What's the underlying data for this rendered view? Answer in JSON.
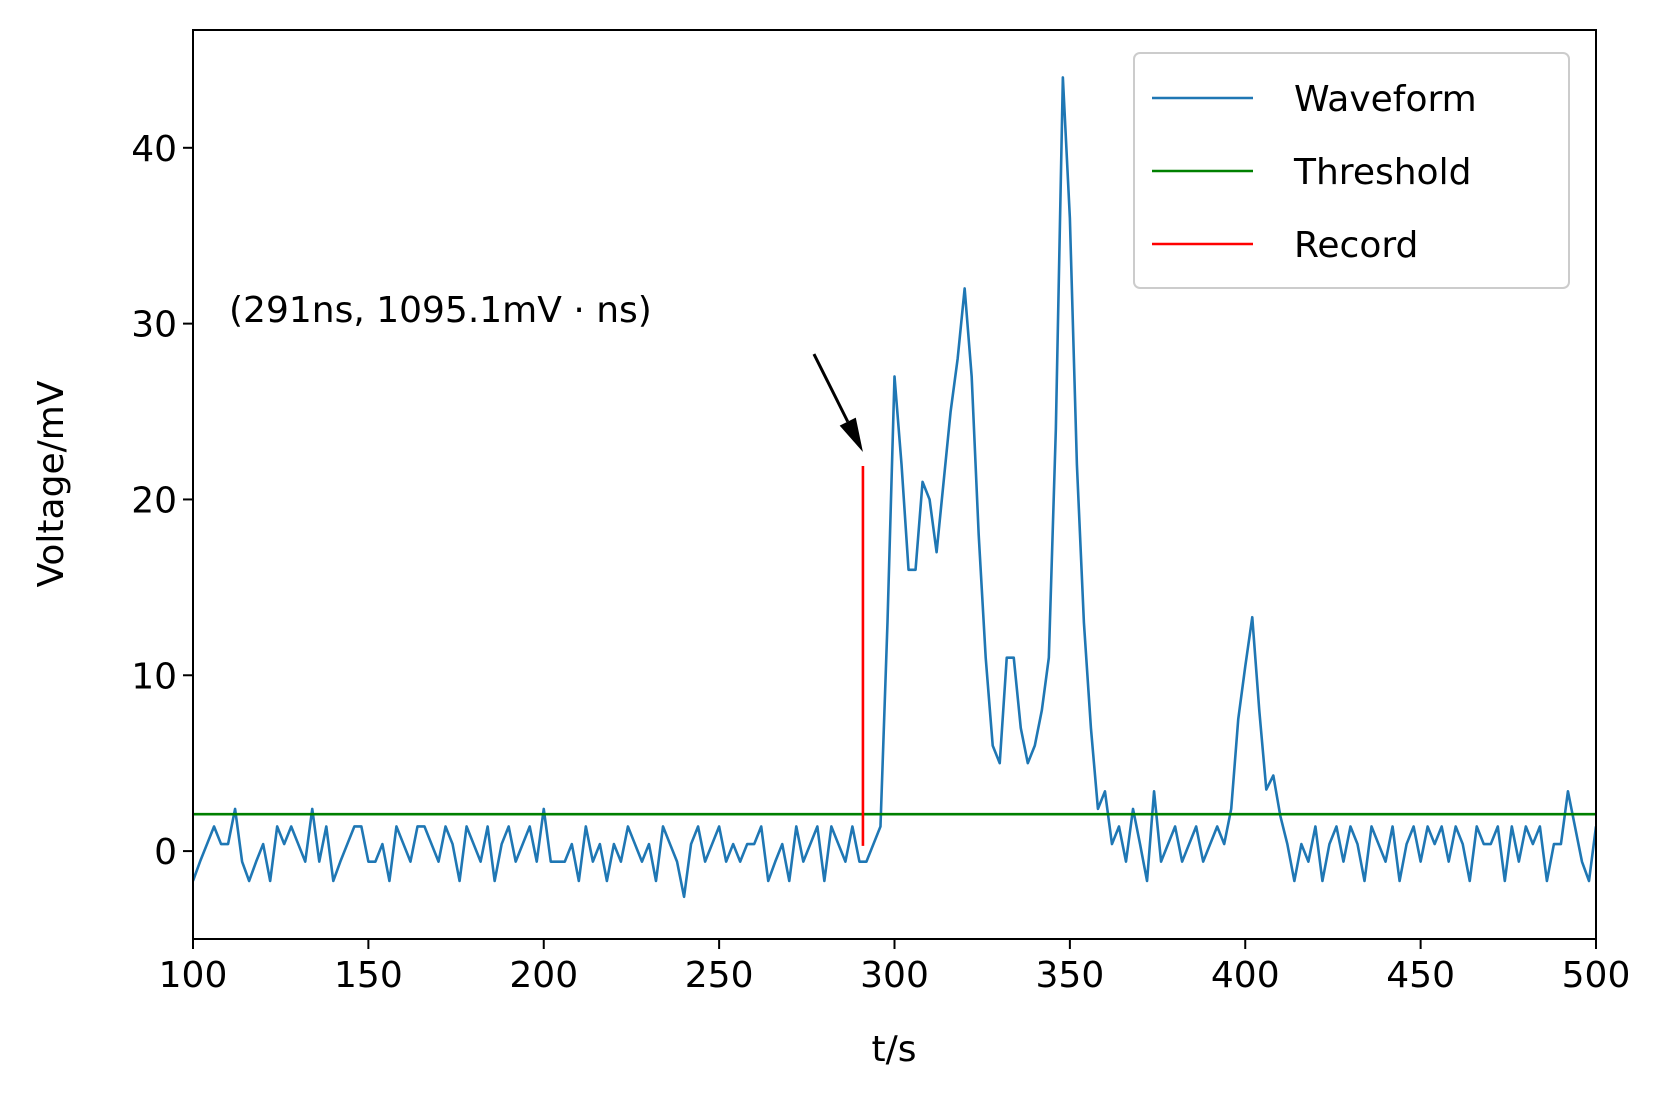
{
  "chart_data": {
    "type": "line",
    "xlabel": "t/s",
    "ylabel": "Voltage/mV",
    "annotation": "(291ns, 1095.1mV · ns)",
    "xlim": [
      100,
      500
    ],
    "xticks": [
      100,
      150,
      200,
      250,
      300,
      350,
      400,
      450,
      500
    ],
    "ylim": [
      -5,
      46.7
    ],
    "yticks": [
      0,
      10,
      20,
      30,
      40
    ],
    "legend": "upper right",
    "series": [
      {
        "name": "Waveform",
        "color": "#1f77b4",
        "x": [
          100,
          102,
          104,
          106,
          108,
          110,
          112,
          114,
          116,
          118,
          120,
          122,
          124,
          126,
          128,
          130,
          132,
          134,
          136,
          138,
          140,
          142,
          144,
          146,
          148,
          150,
          152,
          154,
          156,
          158,
          160,
          162,
          164,
          166,
          168,
          170,
          172,
          174,
          176,
          178,
          180,
          182,
          184,
          186,
          188,
          190,
          192,
          194,
          196,
          198,
          200,
          202,
          204,
          206,
          208,
          210,
          212,
          214,
          216,
          218,
          220,
          222,
          224,
          226,
          228,
          230,
          232,
          234,
          236,
          238,
          240,
          242,
          244,
          246,
          248,
          250,
          252,
          254,
          256,
          258,
          260,
          262,
          264,
          266,
          268,
          270,
          272,
          274,
          276,
          278,
          280,
          282,
          284,
          286,
          288,
          290,
          292,
          294,
          296,
          298,
          300,
          302,
          304,
          306,
          308,
          310,
          312,
          314,
          316,
          318,
          320,
          322,
          324,
          326,
          328,
          330,
          332,
          334,
          336,
          338,
          340,
          342,
          344,
          346,
          348,
          350,
          352,
          354,
          356,
          358,
          360,
          362,
          364,
          366,
          368,
          370,
          372,
          374,
          376,
          378,
          380,
          382,
          384,
          386,
          388,
          390,
          392,
          394,
          396,
          398,
          400,
          402,
          404,
          406,
          408,
          410,
          412,
          414,
          416,
          418,
          420,
          422,
          424,
          426,
          428,
          430,
          432,
          434,
          436,
          438,
          440,
          442,
          444,
          446,
          448,
          450,
          452,
          454,
          456,
          458,
          460,
          462,
          464,
          466,
          468,
          470,
          472,
          474,
          476,
          478,
          480,
          482,
          484,
          486,
          488,
          490,
          492,
          494,
          496,
          498,
          500
        ],
        "values": [
          -1.7,
          -0.6,
          0.4,
          1.4,
          0.4,
          0.4,
          2.4,
          -0.6,
          -1.7,
          -0.6,
          0.4,
          -1.7,
          1.4,
          0.4,
          1.4,
          0.4,
          -0.6,
          2.4,
          -0.6,
          1.4,
          -1.7,
          -0.6,
          0.4,
          1.4,
          1.4,
          -0.6,
          -0.6,
          0.4,
          -1.7,
          1.4,
          0.4,
          -0.6,
          1.4,
          1.4,
          0.4,
          -0.6,
          1.4,
          0.4,
          -1.7,
          1.4,
          0.4,
          -0.6,
          1.4,
          -1.7,
          0.4,
          1.4,
          -0.6,
          0.4,
          1.4,
          -0.6,
          2.4,
          -0.6,
          -0.6,
          -0.6,
          0.4,
          -1.7,
          1.4,
          -0.6,
          0.4,
          -1.7,
          0.4,
          -0.6,
          1.4,
          0.4,
          -0.6,
          0.4,
          -1.7,
          1.4,
          0.4,
          -0.6,
          -2.6,
          0.4,
          1.4,
          -0.6,
          0.4,
          1.4,
          -0.6,
          0.4,
          -0.6,
          0.4,
          0.4,
          1.4,
          -1.7,
          -0.6,
          0.4,
          -1.7,
          1.4,
          -0.6,
          0.4,
          1.4,
          -1.7,
          1.4,
          0.4,
          -0.6,
          1.4,
          -0.6,
          -0.6,
          0.4,
          1.4,
          13,
          27,
          22,
          16,
          16,
          21,
          20,
          17,
          21,
          25,
          28,
          32,
          27,
          18,
          11,
          6,
          5,
          11,
          11,
          7,
          5,
          6,
          8,
          11,
          24,
          44,
          36,
          22,
          13,
          7,
          2.4,
          3.4,
          0.4,
          1.4,
          -0.6,
          2.4,
          0.4,
          -1.7,
          3.4,
          -0.6,
          0.4,
          1.4,
          -0.6,
          0.4,
          1.4,
          -0.6,
          0.4,
          1.4,
          0.4,
          2.4,
          7.5,
          10.5,
          13.3,
          8,
          3.5,
          4.3,
          2,
          0.4,
          -1.7,
          0.4,
          -0.6,
          1.4,
          -1.7,
          0.4,
          1.4,
          -0.6,
          1.4,
          0.4,
          -1.7,
          1.4,
          0.4,
          -0.6,
          1.4,
          -1.7,
          0.4,
          1.4,
          -0.6,
          1.4,
          0.4,
          1.4,
          -0.6,
          1.4,
          0.4,
          -1.7,
          1.4,
          0.4,
          0.4,
          1.4,
          -1.7,
          1.4,
          -0.6,
          1.4,
          0.4,
          1.4,
          -1.7,
          0.4,
          0.4,
          3.4,
          1.4,
          -0.6,
          -1.7,
          1.4
        ]
      },
      {
        "name": "Threshold",
        "color": "#008000",
        "x": [
          100,
          500
        ],
        "values": [
          2.1,
          2.1
        ]
      },
      {
        "name": "Record",
        "color": "#ff0000",
        "x": [
          291,
          291
        ],
        "values": [
          0.3,
          21.9
        ]
      }
    ]
  }
}
